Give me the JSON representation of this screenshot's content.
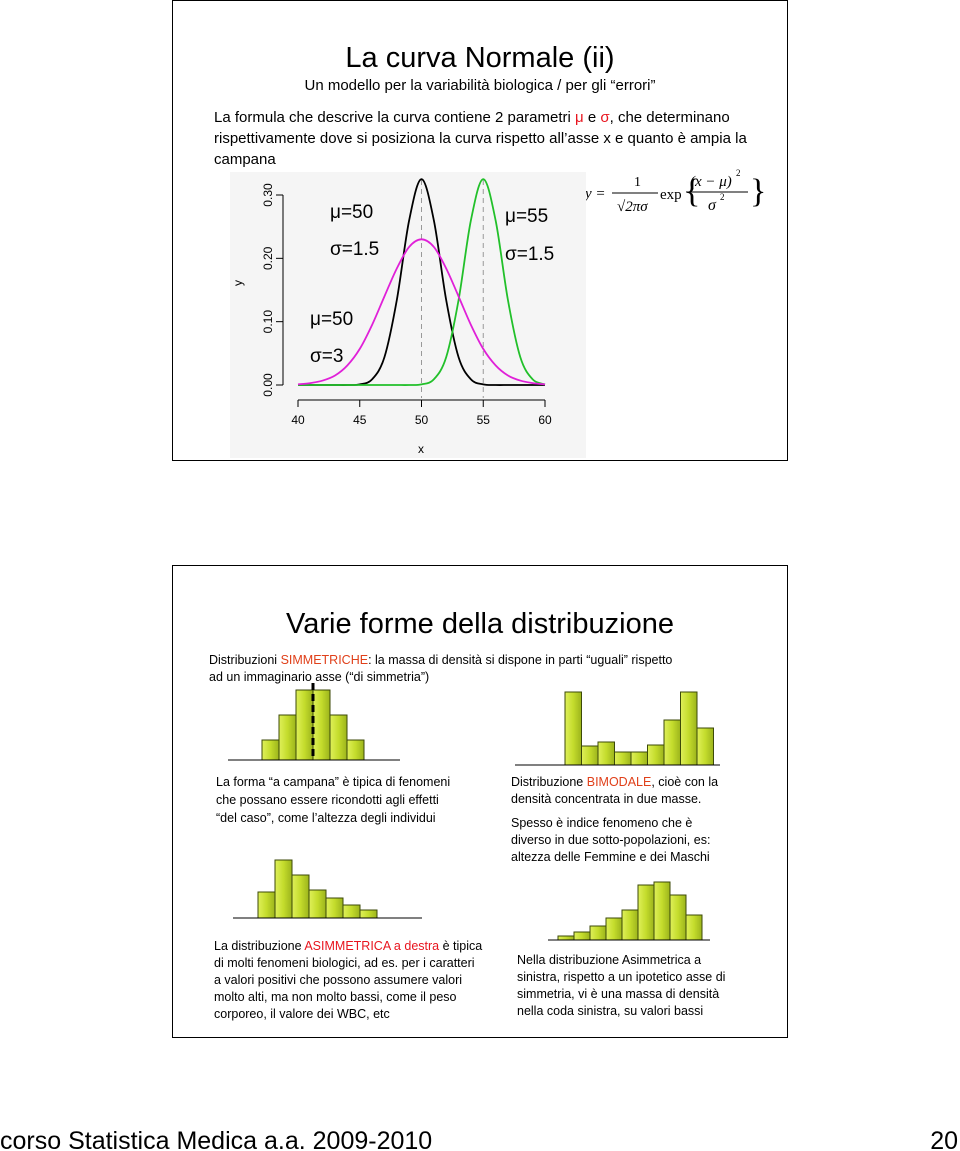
{
  "slide1": {
    "title": "La curva Normale (ii)",
    "subtitle": "Un modello per la variabilità biologica / per gli “errori”",
    "paragraph": [
      [
        "La formula che descrive la curva contiene 2 parametri ",
        "μ",
        " e ",
        "σ",
        ", che determinano"
      ],
      [
        "rispettivamente dove si posiziona la curva rispetto all’asse x e quanto è ampia la"
      ],
      [
        "campana"
      ]
    ],
    "formula": {
      "lhs": "y =",
      "numerator": "1",
      "denominator": "√2πσ",
      "function": "exp",
      "exp_numerator": "(x − μ)",
      "exp_numerator_power": "2",
      "exp_denominator": "σ",
      "exp_denominator_power": "2"
    }
  },
  "chart_data": {
    "type": "line",
    "xlabel": "x",
    "ylabel": "y",
    "x": [
      40,
      41,
      42,
      43,
      44,
      45,
      46,
      47,
      48,
      49,
      50,
      51,
      52,
      53,
      54,
      55,
      56,
      57,
      58,
      59,
      60
    ],
    "series": [
      {
        "color": "#000000",
        "values": [
          0,
          0,
          0,
          0,
          0,
          0.001,
          0.009,
          0.044,
          0.134,
          0.26,
          0.325,
          0.26,
          0.134,
          0.044,
          0.009,
          0.001,
          0,
          0,
          0,
          0,
          0
        ]
      },
      {
        "color": "#22c02a",
        "values": [
          0,
          0,
          0,
          0,
          0,
          0,
          0,
          0,
          0,
          0,
          0.001,
          0.009,
          0.044,
          0.134,
          0.26,
          0.325,
          0.26,
          0.134,
          0.044,
          0.009,
          0.001
        ]
      },
      {
        "color": "#e020d8",
        "values": [
          0.001,
          0.003,
          0.007,
          0.015,
          0.031,
          0.057,
          0.095,
          0.14,
          0.184,
          0.218,
          0.23,
          0.218,
          0.184,
          0.14,
          0.095,
          0.057,
          0.031,
          0.015,
          0.007,
          0.003,
          0.001
        ]
      }
    ],
    "xlim": [
      40,
      60
    ],
    "ylim": [
      0,
      0.3
    ],
    "xticks": [
      40,
      45,
      50,
      55,
      60
    ],
    "yticks": [
      {
        "value": 0,
        "label": "0.00"
      },
      {
        "value": 0.1,
        "label": "0.10"
      },
      {
        "value": 0.2,
        "label": "0.20"
      },
      {
        "value": 0.3,
        "label": "0.30"
      }
    ],
    "vlines": [
      50,
      55
    ],
    "annotations": [
      {
        "text": "μ=50",
        "color": "#000000"
      },
      {
        "text": "σ=1.5",
        "color": "#000000"
      },
      {
        "text": "μ=55",
        "color": "#22c02a"
      },
      {
        "text": "σ=1.5",
        "color": "#22c02a"
      },
      {
        "text": "μ=50",
        "color": "#e020d8"
      },
      {
        "text": "σ=3",
        "color": "#e020d8"
      }
    ]
  },
  "slide2": {
    "title": "Varie forme della distribuzione",
    "intro": [
      [
        "Distribuzioni ",
        "SIMMETRICHE",
        ": la massa di densità si dispone in parti “uguali” rispetto"
      ],
      [
        "ad un immaginario asse (“di simmetria”)"
      ]
    ],
    "symmetric_text": [
      "La forma “a campana” è tipica di fenomeni",
      "che possano essere ricondotti agli effetti",
      "“del caso”, come l’altezza degli individui"
    ],
    "bimodal_text": [
      [
        "Distribuzione ",
        "BIMODALE",
        ", cioè con la"
      ],
      [
        "densità concentrata in due masse."
      ]
    ],
    "bimodal_note": [
      "Spesso è indice fenomeno che è",
      "diverso in due sotto-popolazioni, es:",
      "altezza delle Femmine e dei Maschi"
    ],
    "right_skew_text": [
      [
        "La distribuzione ",
        "ASIMMETRICA a destra",
        " è tipica"
      ],
      [
        "di molti fenomeni biologici, ad es. per i caratteri"
      ],
      [
        "a valori positivi che possono assumere valori"
      ],
      [
        "molto alti, ma non molto bassi, come il peso"
      ],
      [
        "corporeo, il valore dei WBC, etc"
      ]
    ],
    "left_skew_text": [
      "Nella distribuzione Asimmetrica a",
      "sinistra, rispetto a un ipotetico asse di",
      "simmetria, vi è una massa di densità",
      "nella coda sinistra, su valori bassi"
    ],
    "histograms": [
      {
        "values": [
          20,
          45,
          70,
          70,
          45,
          20
        ]
      },
      {
        "values": [
          73,
          19,
          23,
          13,
          13,
          20,
          45,
          73,
          37
        ]
      },
      {
        "values": [
          26,
          58,
          43,
          28,
          20,
          13,
          8
        ]
      },
      {
        "values": [
          4,
          8,
          14,
          22,
          30,
          55,
          58,
          45,
          25
        ]
      }
    ]
  },
  "footer": {
    "left": "corso Statistica Medica a.a. 2009-2010",
    "right": "20"
  }
}
